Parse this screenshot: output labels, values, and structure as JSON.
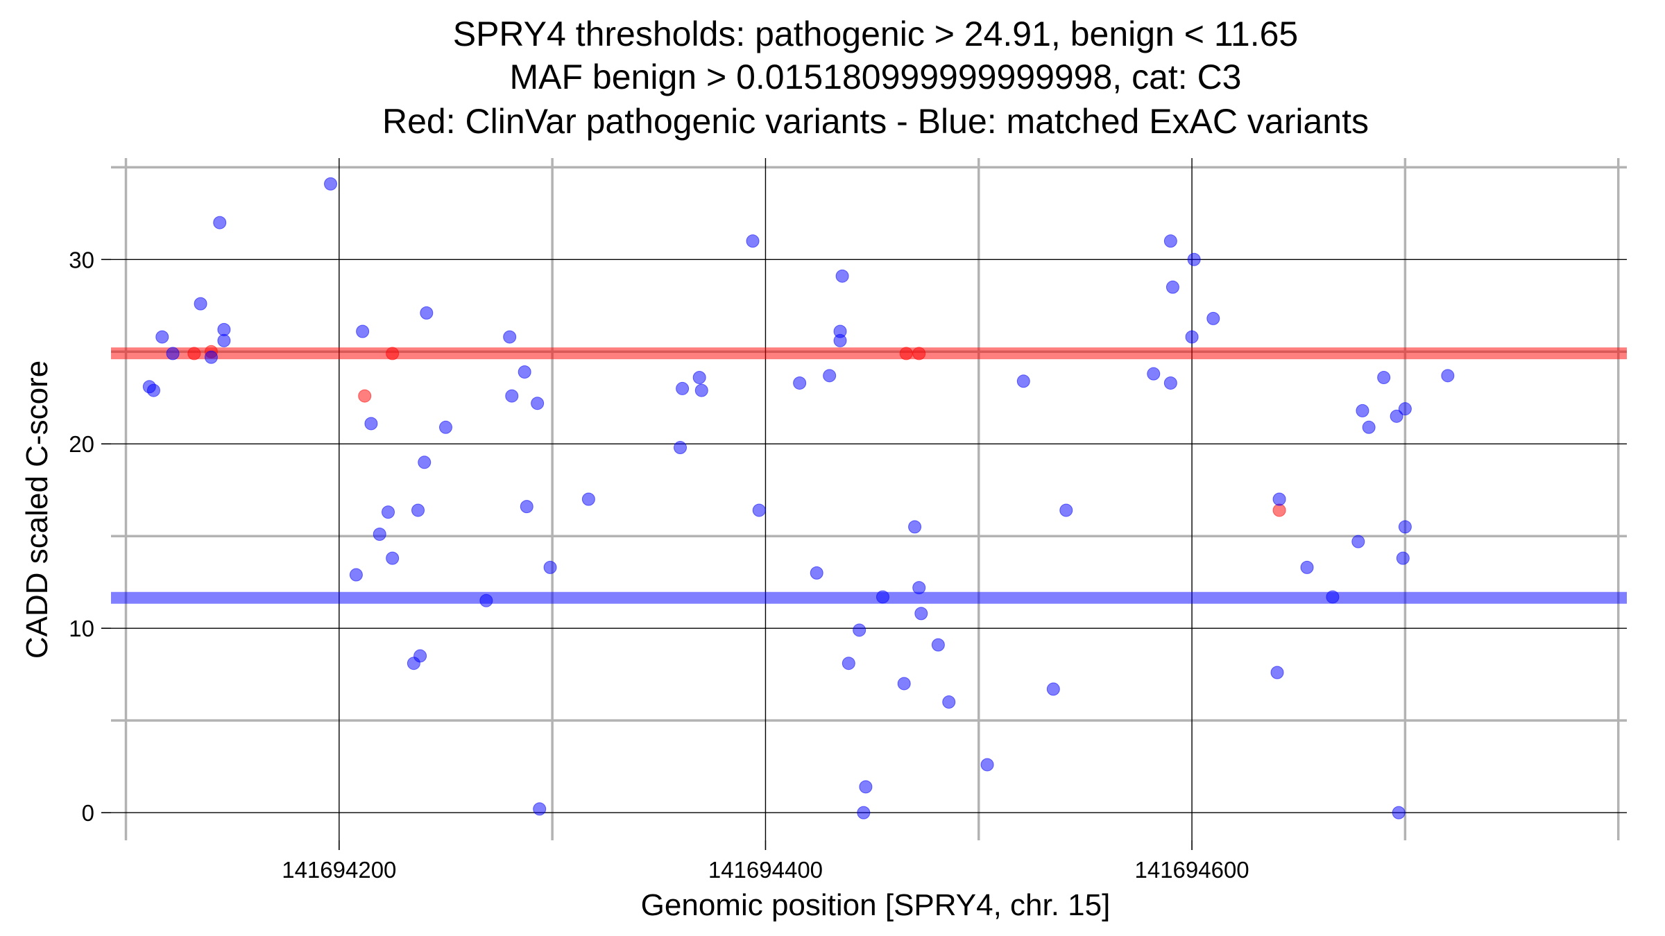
{
  "chart_data": {
    "type": "scatter",
    "title_lines": [
      "SPRY4 thresholds: pathogenic > 24.91, benign < 11.65",
      "MAF benign > 0.015180999999999998, cat: C3",
      "Red: ClinVar pathogenic variants - Blue: matched ExAC variants"
    ],
    "xlabel": "Genomic position [SPRY4, chr. 15]",
    "ylabel": "CADD scaled C-score",
    "xlim": [
      141694093,
      141694804
    ],
    "ylim": [
      -1.5,
      35.5
    ],
    "x_ticks": [
      141694200,
      141694400,
      141694600
    ],
    "y_ticks": [
      0,
      10,
      20,
      30
    ],
    "x_minor_ticks": [
      141694100,
      141694300,
      141694500,
      141694700,
      141694800
    ],
    "y_minor_ticks": [
      5,
      15,
      25,
      35
    ],
    "grid": true,
    "colors": {
      "pathogenic": "#ff0000",
      "benign": "#0000ff",
      "major_grid": "#000000",
      "minor_grid": "#b3b3b3"
    },
    "thresholds": [
      {
        "name": "pathogenic",
        "value": 24.91,
        "color": "#ff0000"
      },
      {
        "name": "benign",
        "value": 11.65,
        "color": "#0000ff"
      }
    ],
    "series": [
      {
        "name": "ClinVar pathogenic variants",
        "color": "#ff0000",
        "points": [
          [
            141694132,
            24.9
          ],
          [
            141694140,
            25.0
          ],
          [
            141694212,
            22.6
          ],
          [
            141694225,
            24.9
          ],
          [
            141694466,
            24.9
          ],
          [
            141694472,
            24.9
          ],
          [
            141694641,
            16.4
          ]
        ]
      },
      {
        "name": "matched ExAC variants",
        "color": "#0000ff",
        "points": [
          [
            141694111,
            23.1
          ],
          [
            141694113,
            22.9
          ],
          [
            141694117,
            25.8
          ],
          [
            141694122,
            24.9
          ],
          [
            141694135,
            27.6
          ],
          [
            141694140,
            24.7
          ],
          [
            141694144,
            32.0
          ],
          [
            141694146,
            26.2
          ],
          [
            141694146,
            25.6
          ],
          [
            141694196,
            34.1
          ],
          [
            141694208,
            12.9
          ],
          [
            141694211,
            26.1
          ],
          [
            141694215,
            21.1
          ],
          [
            141694219,
            15.1
          ],
          [
            141694223,
            16.3
          ],
          [
            141694225,
            13.8
          ],
          [
            141694235,
            8.1
          ],
          [
            141694237,
            16.4
          ],
          [
            141694238,
            8.5
          ],
          [
            141694240,
            19.0
          ],
          [
            141694241,
            27.1
          ],
          [
            141694250,
            20.9
          ],
          [
            141694269,
            11.5
          ],
          [
            141694280,
            25.8
          ],
          [
            141694281,
            22.6
          ],
          [
            141694287,
            23.9
          ],
          [
            141694288,
            16.6
          ],
          [
            141694293,
            22.2
          ],
          [
            141694294,
            0.2
          ],
          [
            141694299,
            13.3
          ],
          [
            141694317,
            17.0
          ],
          [
            141694360,
            19.8
          ],
          [
            141694361,
            23.0
          ],
          [
            141694369,
            23.6
          ],
          [
            141694370,
            22.9
          ],
          [
            141694394,
            31.0
          ],
          [
            141694397,
            16.4
          ],
          [
            141694416,
            23.3
          ],
          [
            141694424,
            13.0
          ],
          [
            141694430,
            23.7
          ],
          [
            141694435,
            26.1
          ],
          [
            141694435,
            25.6
          ],
          [
            141694436,
            29.1
          ],
          [
            141694439,
            8.1
          ],
          [
            141694444,
            9.9
          ],
          [
            141694446,
            0.0
          ],
          [
            141694447,
            1.4
          ],
          [
            141694455,
            11.7
          ],
          [
            141694465,
            7.0
          ],
          [
            141694470,
            15.5
          ],
          [
            141694472,
            12.2
          ],
          [
            141694473,
            10.8
          ],
          [
            141694481,
            9.1
          ],
          [
            141694486,
            6.0
          ],
          [
            141694504,
            2.6
          ],
          [
            141694521,
            23.4
          ],
          [
            141694535,
            6.7
          ],
          [
            141694541,
            16.4
          ],
          [
            141694582,
            23.8
          ],
          [
            141694590,
            31.0
          ],
          [
            141694590,
            23.3
          ],
          [
            141694591,
            28.5
          ],
          [
            141694601,
            30.0
          ],
          [
            141694600,
            25.8
          ],
          [
            141694610,
            26.8
          ],
          [
            141694640,
            7.6
          ],
          [
            141694641,
            17.0
          ],
          [
            141694654,
            13.3
          ],
          [
            141694666,
            11.7
          ],
          [
            141694678,
            14.7
          ],
          [
            141694680,
            21.8
          ],
          [
            141694683,
            20.9
          ],
          [
            141694690,
            23.6
          ],
          [
            141694696,
            21.5
          ],
          [
            141694700,
            21.9
          ],
          [
            141694697,
            0.0
          ],
          [
            141694699,
            13.8
          ],
          [
            141694700,
            15.5
          ],
          [
            141694720,
            23.7
          ]
        ]
      }
    ]
  }
}
